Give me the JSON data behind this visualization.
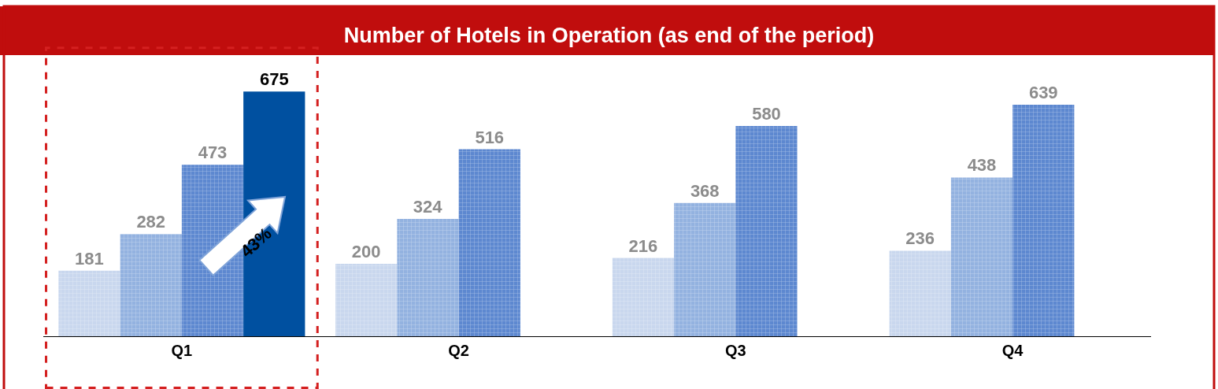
{
  "chart_data": {
    "type": "bar",
    "title": "Number of Hotels in Operation (as end of the period)",
    "categories": [
      "Q1",
      "Q2",
      "Q3",
      "Q4"
    ],
    "series": [
      {
        "color": "#c9d7ee",
        "values": [
          181,
          200,
          216,
          236
        ]
      },
      {
        "color": "#93b2e0",
        "values": [
          282,
          324,
          368,
          438
        ]
      },
      {
        "color": "#5d88d0",
        "values": [
          473,
          516,
          580,
          639
        ]
      },
      {
        "color": "#0050a0",
        "values": [
          675,
          null,
          null,
          null
        ]
      }
    ],
    "data_labels": true,
    "annotations": [
      "43%"
    ]
  }
}
